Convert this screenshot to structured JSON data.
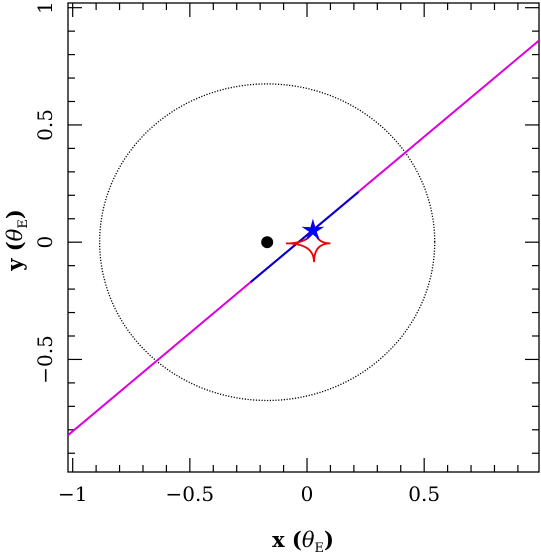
{
  "chart_data": {
    "type": "scatter",
    "title": "",
    "xlabel": {
      "main": "x (",
      "symbol": "θ",
      "sub": "E",
      "close": ")"
    },
    "ylabel": {
      "main": "y (",
      "symbol": "θ",
      "sub": "E",
      "close": ")"
    },
    "xlim": [
      -1.02,
      0.99
    ],
    "ylim": [
      -0.98,
      1.02
    ],
    "xticks": [
      -1,
      -0.5,
      0,
      0.5
    ],
    "xtick_labels": [
      "−1",
      "−0.5",
      "0",
      "0.5"
    ],
    "yticks": [
      -0.5,
      0,
      0.5,
      1
    ],
    "ytick_labels": [
      "−0.5",
      "0",
      "0.5",
      "1"
    ],
    "x_minor_step": 0.1,
    "y_minor_step": 0.1,
    "grid": false,
    "colors": {
      "trajectory": "#dd00dd",
      "trajectory_inner": "#0000cc",
      "caustic": "#ee0000",
      "source": "#0000ff",
      "circle": "#000000",
      "lens": "#000000"
    },
    "series": [
      {
        "kind": "line",
        "role": "source-trajectory",
        "x": [
          -1.02,
          0.99
        ],
        "y": [
          -0.823,
          0.86
        ]
      },
      {
        "kind": "line",
        "role": "trajectory-highlight",
        "x": [
          -0.24,
          0.22
        ],
        "y": [
          -0.17,
          0.214
        ]
      },
      {
        "kind": "circle",
        "role": "einstein-ring",
        "cx": -0.17,
        "cy": 0.0,
        "rx": 0.715,
        "ry": 0.675
      },
      {
        "kind": "point",
        "role": "lens",
        "x": -0.17,
        "y": 0.0
      },
      {
        "kind": "astroid",
        "role": "caustic",
        "cx": 0.03,
        "cy": -0.005,
        "rx": 0.07,
        "ry": 0.08,
        "left_offset": -0.12
      },
      {
        "kind": "marker",
        "role": "source-star",
        "x": 0.025,
        "y": 0.05
      }
    ]
  }
}
